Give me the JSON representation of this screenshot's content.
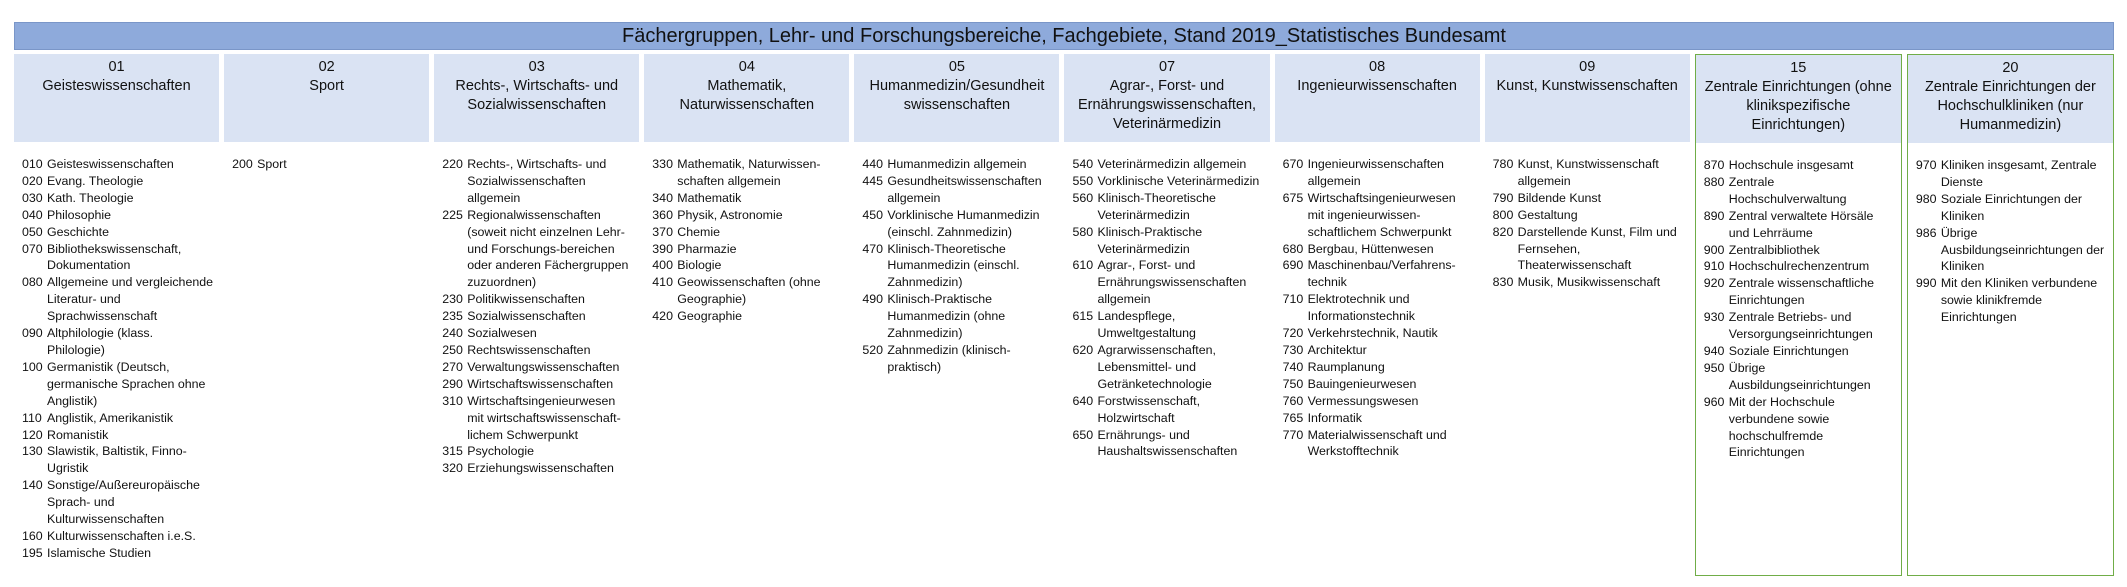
{
  "title": "Fächergruppen, Lehr- und Forschungsbereiche, Fachgebiete, Stand 2019_Statistisches Bundesamt",
  "colors": {
    "title_bg": "#8eaadb",
    "header_bg": "#dae3f3",
    "highlight_border": "#70ad47"
  },
  "columns": [
    {
      "code": "01",
      "name": "Geisteswissenschaften",
      "highlight": false,
      "items": [
        {
          "code": "010",
          "text": "Geisteswissenschaften"
        },
        {
          "code": "020",
          "text": "Evang. Theologie"
        },
        {
          "code": "030",
          "text": "Kath. Theologie"
        },
        {
          "code": "040",
          "text": "Philosophie"
        },
        {
          "code": "050",
          "text": "Geschichte"
        },
        {
          "code": "070",
          "text": "Bibliothekswissenschaft, Dokumentation"
        },
        {
          "code": "080",
          "text": "Allgemeine und vergleichende Literatur- und Sprachwissenschaft"
        },
        {
          "code": "090",
          "text": "Altphilologie (klass. Philologie)"
        },
        {
          "code": "100",
          "text": "Germanistik (Deutsch, germanische Sprachen ohne Anglistik)"
        },
        {
          "code": "110",
          "text": "Anglistik, Amerikanistik"
        },
        {
          "code": "120",
          "text": "Romanistik"
        },
        {
          "code": "130",
          "text": "Slawistik, Baltistik, Finno-Ugristik"
        },
        {
          "code": "140",
          "text": "Sonstige/Außereuropäische Sprach- und Kulturwissenschaften"
        },
        {
          "code": "160",
          "text": "Kulturwissenschaften i.e.S."
        },
        {
          "code": "195",
          "text": "Islamische Studien"
        }
      ]
    },
    {
      "code": "02",
      "name": "Sport",
      "highlight": false,
      "items": [
        {
          "code": "200",
          "text": "Sport"
        }
      ]
    },
    {
      "code": "03",
      "name": "Rechts-, Wirtschafts- und Sozialwissenschaften",
      "highlight": false,
      "items": [
        {
          "code": "220",
          "text": "Rechts-, Wirtschafts- und Sozialwissenschaften allgemein"
        },
        {
          "code": "225",
          "text": "Regionalwissenschaften (soweit nicht einzelnen Lehr- und Forschungs-bereichen oder anderen Fächergruppen zuzuordnen)"
        },
        {
          "code": "230",
          "text": "Politikwissenschaften"
        },
        {
          "code": "235",
          "text": "Sozialwissenschaften"
        },
        {
          "code": "240",
          "text": "Sozialwesen"
        },
        {
          "code": "250",
          "text": "Rechtswissenschaften"
        },
        {
          "code": "270",
          "text": "Verwaltungswissenschaften"
        },
        {
          "code": "290",
          "text": "Wirtschaftswissenschaften"
        },
        {
          "code": "310",
          "text": "Wirtschaftsingenieurwesen mit wirtschaftswissenschaft-lichem Schwerpunkt"
        },
        {
          "code": "315",
          "text": "Psychologie"
        },
        {
          "code": "320",
          "text": "Erziehungswissenschaften"
        }
      ]
    },
    {
      "code": "04",
      "name": "Mathematik, Naturwissenschaften",
      "highlight": false,
      "items": [
        {
          "code": "330",
          "text": "Mathematik, Naturwissen-schaften allgemein"
        },
        {
          "code": "340",
          "text": "Mathematik"
        },
        {
          "code": "360",
          "text": "Physik, Astronomie"
        },
        {
          "code": "370",
          "text": "Chemie"
        },
        {
          "code": "390",
          "text": "Pharmazie"
        },
        {
          "code": "400",
          "text": "Biologie"
        },
        {
          "code": "410",
          "text": "Geowissenschaften (ohne Geographie)"
        },
        {
          "code": "420",
          "text": "Geographie"
        }
      ]
    },
    {
      "code": "05",
      "name": "Humanmedizin/Gesundheit swissenschaften",
      "highlight": false,
      "items": [
        {
          "code": "440",
          "text": "Humanmedizin allgemein"
        },
        {
          "code": "445",
          "text": "Gesundheitswissenschaften allgemein"
        },
        {
          "code": "450",
          "text": "Vorklinische Humanmedizin (einschl. Zahnmedizin)"
        },
        {
          "code": "470",
          "text": "Klinisch-Theoretische Humanmedizin (einschl. Zahnmedizin)"
        },
        {
          "code": "490",
          "text": "Klinisch-Praktische Humanmedizin (ohne Zahnmedizin)"
        },
        {
          "code": "520",
          "text": "Zahnmedizin (klinisch-praktisch)"
        }
      ]
    },
    {
      "code": "07",
      "name": "Agrar-, Forst- und Ernährungswissenschaften, Veterinärmedizin",
      "highlight": false,
      "items": [
        {
          "code": "540",
          "text": "Veterinärmedizin allgemein"
        },
        {
          "code": "550",
          "text": "Vorklinische Veterinärmedizin"
        },
        {
          "code": "560",
          "text": "Klinisch-Theoretische Veterinärmedizin"
        },
        {
          "code": "580",
          "text": "Klinisch-Praktische Veterinärmedizin"
        },
        {
          "code": "610",
          "text": "Agrar-, Forst- und Ernährungswissenschaften allgemein"
        },
        {
          "code": "615",
          "text": "Landespflege, Umweltgestaltung"
        },
        {
          "code": "620",
          "text": "Agrarwissenschaften, Lebensmittel- und Getränketechnologie"
        },
        {
          "code": "640",
          "text": "Forstwissenschaft, Holzwirtschaft"
        },
        {
          "code": "650",
          "text": "Ernährungs- und Haushaltswissenschaften"
        }
      ]
    },
    {
      "code": "08",
      "name": "Ingenieurwissenschaften",
      "highlight": false,
      "items": [
        {
          "code": "670",
          "text": "Ingenieurwissenschaften allgemein"
        },
        {
          "code": "675",
          "text": "Wirtschaftsingenieurwesen mit ingenieurwissen-schaftlichem Schwerpunkt"
        },
        {
          "code": "680",
          "text": "Bergbau, Hüttenwesen"
        },
        {
          "code": "690",
          "text": "Maschinenbau/Verfahrens-technik"
        },
        {
          "code": "710",
          "text": "Elektrotechnik und Informationstechnik"
        },
        {
          "code": "720",
          "text": "Verkehrstechnik, Nautik"
        },
        {
          "code": "730",
          "text": "Architektur"
        },
        {
          "code": "740",
          "text": "Raumplanung"
        },
        {
          "code": "750",
          "text": "Bauingenieurwesen"
        },
        {
          "code": "760",
          "text": "Vermessungswesen"
        },
        {
          "code": "765",
          "text": "Informatik"
        },
        {
          "code": "770",
          "text": "Materialwissenschaft und Werkstofftechnik"
        }
      ]
    },
    {
      "code": "09",
      "name": "Kunst, Kunstwissenschaften",
      "highlight": false,
      "items": [
        {
          "code": "780",
          "text": "Kunst, Kunstwissenschaft allgemein"
        },
        {
          "code": "790",
          "text": "Bildende Kunst"
        },
        {
          "code": "800",
          "text": "Gestaltung"
        },
        {
          "code": "820",
          "text": "Darstellende Kunst, Film und Fernsehen, Theaterwissenschaft"
        },
        {
          "code": "830",
          "text": "Musik, Musikwissenschaft"
        }
      ]
    },
    {
      "code": "15",
      "name": "Zentrale Einrichtungen (ohne klinikspezifische Einrichtungen)",
      "highlight": true,
      "items": [
        {
          "code": "870",
          "text": "Hochschule insgesamt"
        },
        {
          "code": "880",
          "text": "Zentrale Hochschulverwaltung"
        },
        {
          "code": "890",
          "text": "Zentral verwaltete Hörsäle und Lehrräume"
        },
        {
          "code": "900",
          "text": "Zentralbibliothek"
        },
        {
          "code": "910",
          "text": "Hochschulrechenzentrum"
        },
        {
          "code": "920",
          "text": "Zentrale wissenschaftliche Einrichtungen"
        },
        {
          "code": "930",
          "text": "Zentrale Betriebs- und Versorgungseinrichtungen"
        },
        {
          "code": "940",
          "text": "Soziale Einrichtungen"
        },
        {
          "code": "950",
          "text": "Übrige Ausbildungseinrichtungen"
        },
        {
          "code": "960",
          "text": "Mit der Hochschule verbundene sowie hochschulfremde Einrichtungen"
        }
      ]
    },
    {
      "code": "20",
      "name": "Zentrale Einrichtungen der Hochschulkliniken (nur Humanmedizin)",
      "highlight": true,
      "items": [
        {
          "code": "970",
          "text": "Kliniken insgesamt, Zentrale Dienste"
        },
        {
          "code": "980",
          "text": "Soziale Einrichtungen der Kliniken"
        },
        {
          "code": "986",
          "text": "Übrige Ausbildungseinrichtungen der Kliniken"
        },
        {
          "code": "990",
          "text": "Mit den Kliniken verbundene sowie klinikfremde Einrichtungen"
        }
      ]
    }
  ]
}
